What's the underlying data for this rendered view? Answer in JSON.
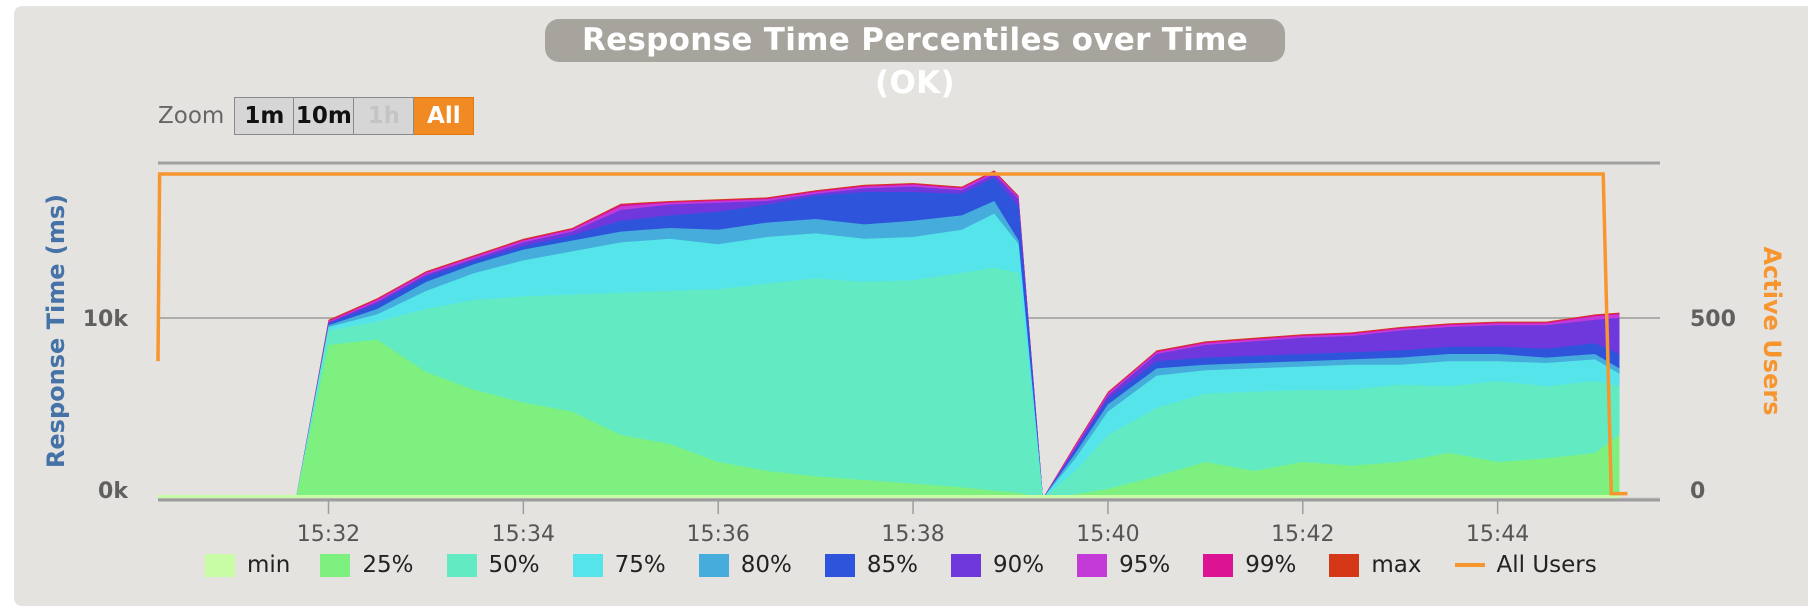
{
  "title": "Response Time Percentiles over Time (OK)",
  "zoom": {
    "label": "Zoom",
    "buttons": [
      {
        "label": "1m",
        "state": "normal"
      },
      {
        "label": "10m",
        "state": "normal"
      },
      {
        "label": "1h",
        "state": "disabled"
      },
      {
        "label": "All",
        "state": "selected"
      }
    ]
  },
  "colors": {
    "min": "#c8fca5",
    "p25": "#7ef07f",
    "p50": "#62ebc2",
    "p75": "#55e4ea",
    "p80": "#45acdc",
    "p85": "#2f54dc",
    "p90": "#6f38dc",
    "p95": "#c43ad8",
    "p99": "#dc1393",
    "max": "#d43818",
    "users": "#f7962f",
    "left_axis": "#4572a7",
    "right_axis": "#f7962f"
  },
  "chart_data": {
    "type": "area",
    "title": "Response Time Percentiles over Time (OK)",
    "xlabel": "",
    "ylabel": "Response Time (ms)",
    "y2label": "Active Users",
    "x_ticks": [
      "15:32",
      "15:34",
      "15:36",
      "15:38",
      "15:40",
      "15:42",
      "15:44"
    ],
    "y_ticks": [
      "0k",
      "10k"
    ],
    "y2_ticks": [
      "0",
      "500"
    ],
    "ylim": [
      0,
      18500
    ],
    "y2lim": [
      0,
      925
    ],
    "legend_position": "bottom",
    "x": [
      "15:30:15",
      "15:31:20",
      "15:31:40",
      "15:32:00",
      "15:32:30",
      "15:33:00",
      "15:33:30",
      "15:34:00",
      "15:34:30",
      "15:35:00",
      "15:35:30",
      "15:36:00",
      "15:36:30",
      "15:37:00",
      "15:37:30",
      "15:38:00",
      "15:38:30",
      "15:38:50",
      "15:39:05",
      "15:39:20",
      "15:39:40",
      "15:40:00",
      "15:40:30",
      "15:41:00",
      "15:41:30",
      "15:42:00",
      "15:42:30",
      "15:43:00",
      "15:43:30",
      "15:44:00",
      "15:44:30",
      "15:45:00",
      "15:45:15"
    ],
    "series": [
      {
        "name": "min",
        "color_key": "min",
        "values": [
          0,
          0,
          0,
          0,
          0,
          0,
          0,
          0,
          0,
          0,
          0,
          0,
          0,
          0,
          0,
          0,
          0,
          0,
          0,
          0,
          0,
          0,
          0,
          0,
          0,
          0,
          0,
          0,
          0,
          0,
          0,
          0,
          0
        ]
      },
      {
        "name": "25%",
        "color_key": "p25",
        "values": [
          0,
          0,
          0,
          8500,
          8800,
          7000,
          6000,
          5300,
          4800,
          3500,
          3000,
          2000,
          1500,
          1200,
          1000,
          800,
          600,
          400,
          300,
          0,
          200,
          500,
          1200,
          2000,
          1500,
          2000,
          1800,
          2000,
          2500,
          2000,
          2200,
          2500,
          3500
        ]
      },
      {
        "name": "50%",
        "color_key": "p50",
        "values": [
          0,
          0,
          0,
          9300,
          9800,
          10500,
          11000,
          11200,
          11300,
          11400,
          11500,
          11600,
          11900,
          12200,
          12000,
          12100,
          12500,
          12800,
          12500,
          0,
          1500,
          3500,
          5000,
          5800,
          5900,
          6000,
          6000,
          6300,
          6200,
          6500,
          6200,
          6500,
          6200
        ]
      },
      {
        "name": "75%",
        "color_key": "p75",
        "values": [
          0,
          0,
          0,
          9500,
          10200,
          11500,
          12500,
          13200,
          13700,
          14200,
          14400,
          14100,
          14500,
          14700,
          14400,
          14500,
          14900,
          15800,
          14100,
          0,
          2200,
          4800,
          6800,
          7100,
          7200,
          7300,
          7400,
          7400,
          7600,
          7600,
          7500,
          7700,
          6900
        ]
      },
      {
        "name": "80%",
        "color_key": "p80",
        "values": [
          0,
          0,
          0,
          9600,
          10500,
          12000,
          13000,
          13800,
          14300,
          14800,
          15000,
          14900,
          15300,
          15500,
          15200,
          15400,
          15700,
          16500,
          14300,
          0,
          2500,
          5200,
          7200,
          7400,
          7500,
          7600,
          7700,
          7800,
          8000,
          8000,
          7800,
          8000,
          7200
        ]
      },
      {
        "name": "85%",
        "color_key": "p85",
        "values": [
          0,
          0,
          0,
          9700,
          10800,
          12300,
          13200,
          14000,
          14600,
          15400,
          15700,
          15900,
          16300,
          16800,
          17000,
          17000,
          16900,
          17800,
          16200,
          0,
          2700,
          5500,
          7600,
          7800,
          7900,
          8000,
          8100,
          8200,
          8400,
          8400,
          8300,
          8600,
          8000
        ]
      },
      {
        "name": "90%",
        "color_key": "p90",
        "values": [
          0,
          0,
          0,
          9750,
          10900,
          12400,
          13300,
          14200,
          14800,
          16000,
          16300,
          16400,
          16500,
          16900,
          17200,
          17300,
          17100,
          18000,
          16600,
          0,
          2800,
          5700,
          8000,
          8500,
          8700,
          8900,
          9000,
          9300,
          9500,
          9600,
          9600,
          9900,
          10000
        ]
      },
      {
        "name": "95%",
        "color_key": "p95",
        "values": [
          0,
          0,
          0,
          9800,
          11000,
          12500,
          13400,
          14300,
          14900,
          16200,
          16400,
          16500,
          16600,
          17000,
          17300,
          17400,
          17200,
          18100,
          16700,
          0,
          2900,
          5800,
          8100,
          8600,
          8800,
          9000,
          9100,
          9400,
          9600,
          9700,
          9700,
          10100,
          10200
        ]
      },
      {
        "name": "99%",
        "color_key": "p99",
        "values": [
          0,
          0,
          0,
          9850,
          11050,
          12550,
          13450,
          14350,
          14950,
          16300,
          16450,
          16550,
          16650,
          17050,
          17350,
          17450,
          17250,
          18150,
          16750,
          0,
          2950,
          5850,
          8150,
          8650,
          8850,
          9050,
          9150,
          9450,
          9650,
          9750,
          9750,
          10150,
          10250
        ]
      },
      {
        "name": "max",
        "color_key": "max",
        "values": [
          0,
          0,
          0,
          9900,
          11100,
          12600,
          13500,
          14400,
          15000,
          16350,
          16500,
          16600,
          16700,
          17100,
          17400,
          17500,
          17300,
          18200,
          16800,
          0,
          3000,
          5900,
          8200,
          8700,
          8900,
          9100,
          9200,
          9500,
          9700,
          9800,
          9800,
          10200,
          10300
        ]
      }
    ],
    "users_series": {
      "name": "All Users",
      "color_key": "users",
      "x": [
        "15:30:15",
        "15:30:16",
        "15:45:05",
        "15:45:10",
        "15:45:20"
      ],
      "values": [
        380,
        900,
        900,
        12,
        12
      ]
    }
  }
}
